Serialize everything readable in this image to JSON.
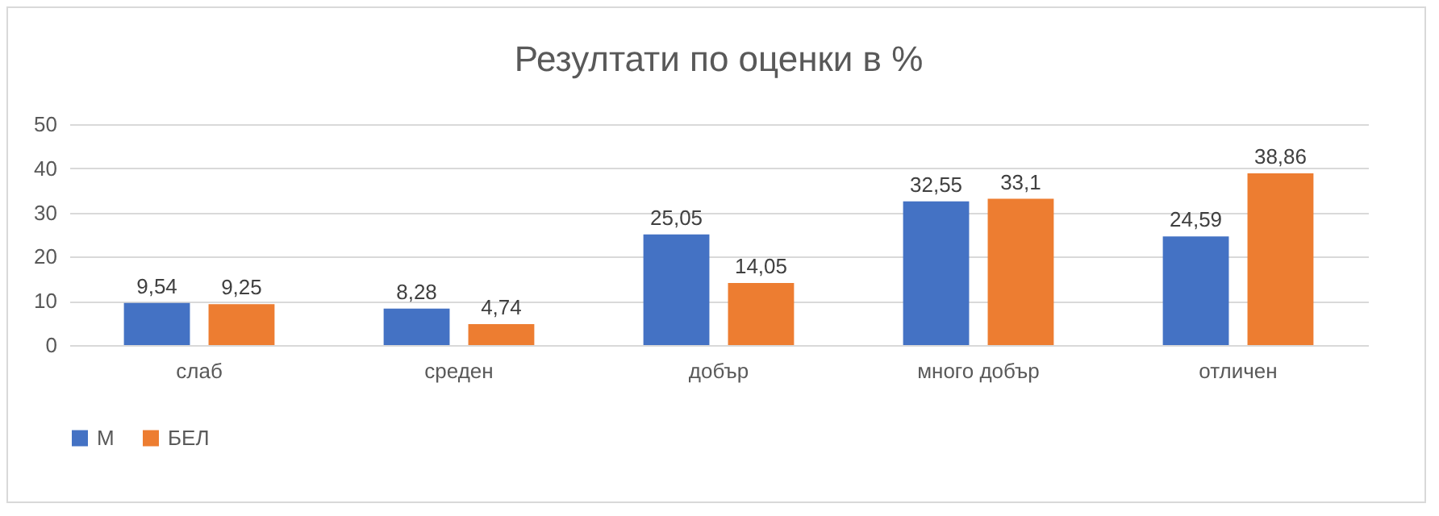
{
  "chart_data": {
    "type": "bar",
    "title": "Резултати по оценки в %",
    "categories": [
      "слаб",
      "среден",
      "добър",
      "много добър",
      "отличен"
    ],
    "series": [
      {
        "name": "М",
        "color": "#4472c4",
        "values": [
          9.54,
          8.28,
          25.05,
          32.55,
          24.59
        ],
        "value_labels": [
          "9,54",
          "8,28",
          "25,05",
          "32,55",
          "24,59"
        ]
      },
      {
        "name": "БЕЛ",
        "color": "#ed7d31",
        "values": [
          9.25,
          4.74,
          14.05,
          33.1,
          38.86
        ],
        "value_labels": [
          "9,25",
          "4,74",
          "14,05",
          "33,1",
          "38,86"
        ]
      }
    ],
    "ylim": [
      0,
      50
    ],
    "yticks": [
      0,
      10,
      20,
      30,
      40,
      50
    ],
    "grid": "y",
    "legend": "bottom"
  }
}
